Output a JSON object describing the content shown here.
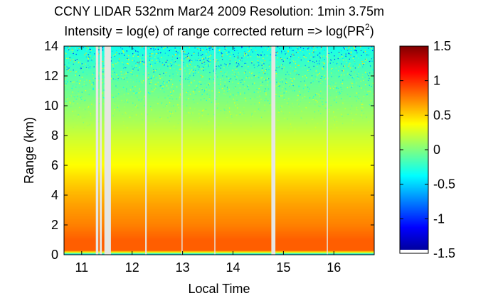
{
  "chart_data": {
    "type": "heatmap",
    "title": "CCNY LIDAR 532nm Mar24 2009 Resolution: 1min 3.75m",
    "subtitle_prefix": "Intensity = log(e) of range corrected return => log(PR",
    "subtitle_superscript": "2",
    "subtitle_suffix": ")",
    "xlabel": "Local Time",
    "ylabel": "Range (km)",
    "xlim": [
      10.65,
      16.8
    ],
    "ylim": [
      0,
      14
    ],
    "xticks": [
      11,
      12,
      13,
      14,
      15,
      16
    ],
    "xtick_labels": [
      "11",
      "12",
      "13",
      "14",
      "15",
      "16"
    ],
    "yticks": [
      0,
      2,
      4,
      6,
      8,
      10,
      12,
      14
    ],
    "ytick_labels": [
      "0",
      "2",
      "4",
      "6",
      "8",
      "10",
      "12",
      "14"
    ],
    "colorbar": {
      "colormap": "jet",
      "clim": [
        -1.5,
        1.5
      ],
      "ticks": [
        1.5,
        1,
        0.5,
        0,
        -0.5,
        -1,
        -1.5
      ],
      "tick_labels": [
        "1.5",
        "1",
        "0.5",
        "0",
        "-0.5",
        "-1",
        "-1.5"
      ]
    },
    "intensity_profile": [
      {
        "range_km": 0.0,
        "value": -1.4
      },
      {
        "range_km": 0.1,
        "value": -0.1
      },
      {
        "range_km": 0.3,
        "value": 0.85
      },
      {
        "range_km": 1.0,
        "value": 0.85
      },
      {
        "range_km": 2.0,
        "value": 0.75
      },
      {
        "range_km": 3.0,
        "value": 0.68
      },
      {
        "range_km": 4.0,
        "value": 0.6
      },
      {
        "range_km": 5.0,
        "value": 0.5
      },
      {
        "range_km": 6.0,
        "value": 0.38
      },
      {
        "range_km": 7.0,
        "value": 0.3
      },
      {
        "range_km": 8.0,
        "value": 0.22
      },
      {
        "range_km": 9.0,
        "value": 0.12
      },
      {
        "range_km": 10.0,
        "value": 0.04
      },
      {
        "range_km": 11.0,
        "value": -0.05
      },
      {
        "range_km": 12.0,
        "value": -0.12
      },
      {
        "range_km": 13.0,
        "value": -0.22
      },
      {
        "range_km": 14.0,
        "value": -0.32
      }
    ],
    "data_gaps_local_time": [
      [
        11.28,
        11.33
      ],
      [
        11.36,
        11.4
      ],
      [
        11.45,
        11.58
      ],
      [
        12.26,
        12.29
      ],
      [
        12.98,
        13.0
      ],
      [
        13.63,
        13.65
      ],
      [
        14.76,
        14.84
      ],
      [
        15.86,
        15.88
      ]
    ],
    "gap_color": "#e6e6e2"
  }
}
